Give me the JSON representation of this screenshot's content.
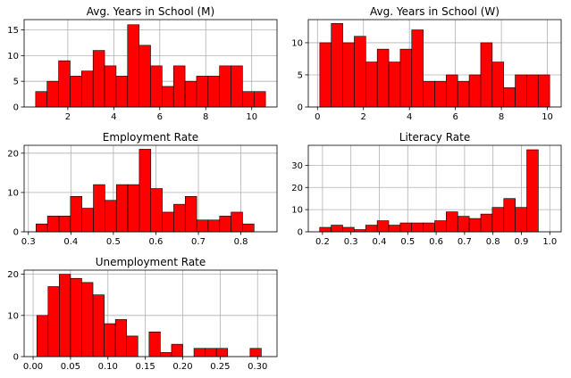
{
  "chart_data": [
    {
      "type": "bar",
      "subtype": "histogram",
      "title": "Avg. Years in School (M)",
      "grid": true,
      "color": "#ff0000",
      "edge_color": "#000000",
      "xlim": [
        0.1,
        11.1
      ],
      "ylim": [
        0,
        17
      ],
      "xticks": [
        2,
        4,
        6,
        8,
        10
      ],
      "xtick_labels": [
        "2",
        "4",
        "6",
        "8",
        "10"
      ],
      "yticks": [
        0,
        5,
        10,
        15
      ],
      "ytick_labels": [
        "0",
        "5",
        "10",
        "15"
      ],
      "bin_edges": [
        0.6,
        1.1,
        1.6,
        2.1,
        2.6,
        3.1,
        3.6,
        4.1,
        4.6,
        5.1,
        5.6,
        6.1,
        6.6,
        7.1,
        7.6,
        8.1,
        8.6,
        9.1,
        9.6,
        10.1,
        10.6
      ],
      "counts": [
        3,
        5,
        9,
        6,
        7,
        11,
        8,
        6,
        16,
        12,
        8,
        4,
        8,
        5,
        6,
        6,
        8,
        8,
        3,
        3
      ]
    },
    {
      "type": "bar",
      "subtype": "histogram",
      "title": "Avg. Years in School (W)",
      "grid": true,
      "color": "#ff0000",
      "edge_color": "#000000",
      "xlim": [
        -0.4,
        10.6
      ],
      "ylim": [
        0,
        13.6
      ],
      "xticks": [
        0,
        2,
        4,
        6,
        8,
        10
      ],
      "xtick_labels": [
        "0",
        "2",
        "4",
        "6",
        "8",
        "10"
      ],
      "yticks": [
        0,
        5,
        10
      ],
      "ytick_labels": [
        "0",
        "5",
        "10"
      ],
      "bin_edges": [
        0.1,
        0.6,
        1.1,
        1.6,
        2.1,
        2.6,
        3.1,
        3.6,
        4.1,
        4.6,
        5.1,
        5.6,
        6.1,
        6.6,
        7.1,
        7.6,
        8.1,
        8.6,
        9.1,
        9.6,
        10.1
      ],
      "counts": [
        10,
        13,
        10,
        11,
        7,
        9,
        7,
        9,
        12,
        4,
        4,
        5,
        4,
        5,
        10,
        7,
        3,
        5,
        5,
        5
      ]
    },
    {
      "type": "bar",
      "subtype": "histogram",
      "title": "Employment Rate",
      "grid": true,
      "color": "#ff0000",
      "edge_color": "#000000",
      "xlim": [
        0.29,
        0.885
      ],
      "ylim": [
        0,
        22
      ],
      "xticks": [
        0.3,
        0.4,
        0.5,
        0.6,
        0.7,
        0.8
      ],
      "xtick_labels": [
        "0.3",
        "0.4",
        "0.5",
        "0.6",
        "0.7",
        "0.8"
      ],
      "yticks": [
        0,
        10,
        20
      ],
      "ytick_labels": [
        "0",
        "10",
        "20"
      ],
      "bin_edges": [
        0.318,
        0.345,
        0.372,
        0.399,
        0.426,
        0.453,
        0.48,
        0.507,
        0.534,
        0.561,
        0.588,
        0.615,
        0.642,
        0.669,
        0.696,
        0.723,
        0.75,
        0.777,
        0.804,
        0.831,
        0.858
      ],
      "counts": [
        2,
        4,
        4,
        9,
        6,
        12,
        8,
        12,
        12,
        21,
        11,
        5,
        7,
        9,
        3,
        3,
        4,
        5,
        2,
        0
      ]
    },
    {
      "type": "bar",
      "subtype": "histogram",
      "title": "Literacy Rate",
      "grid": true,
      "color": "#ff0000",
      "edge_color": "#000000",
      "xlim": [
        0.15,
        1.04
      ],
      "ylim": [
        0,
        39
      ],
      "xticks": [
        0.2,
        0.3,
        0.4,
        0.5,
        0.6,
        0.7,
        0.8,
        0.9,
        1.0
      ],
      "xtick_labels": [
        "0.2",
        "0.3",
        "0.4",
        "0.5",
        "0.6",
        "0.7",
        "0.8",
        "0.9",
        "1.0"
      ],
      "yticks": [
        0,
        10,
        20,
        30
      ],
      "ytick_labels": [
        "0",
        "10",
        "20",
        "30"
      ],
      "bin_edges": [
        0.19,
        0.2305,
        0.271,
        0.3115,
        0.352,
        0.3925,
        0.433,
        0.4735,
        0.514,
        0.5545,
        0.595,
        0.6355,
        0.676,
        0.7165,
        0.757,
        0.7975,
        0.838,
        0.8785,
        0.919,
        0.9595,
        1.0
      ],
      "counts": [
        2,
        3,
        2,
        1,
        3,
        5,
        3,
        4,
        4,
        4,
        5,
        9,
        7,
        6,
        8,
        11,
        15,
        11,
        37,
        0
      ]
    },
    {
      "type": "bar",
      "subtype": "histogram",
      "title": "Unemployment Rate",
      "grid": true,
      "color": "#ff0000",
      "edge_color": "#000000",
      "xlim": [
        -0.012,
        0.326
      ],
      "ylim": [
        0,
        21
      ],
      "xticks": [
        0.0,
        0.05,
        0.1,
        0.15,
        0.2,
        0.25,
        0.3
      ],
      "xtick_labels": [
        "0.00",
        "0.05",
        "0.10",
        "0.15",
        "0.20",
        "0.25",
        "0.30"
      ],
      "yticks": [
        0,
        10,
        20
      ],
      "ytick_labels": [
        "0",
        "10",
        "20"
      ],
      "bin_edges": [
        0.005,
        0.02,
        0.035,
        0.05,
        0.065,
        0.08,
        0.095,
        0.11,
        0.125,
        0.14,
        0.155,
        0.17,
        0.185,
        0.2,
        0.215,
        0.23,
        0.245,
        0.26,
        0.275,
        0.29,
        0.305,
        0.32
      ],
      "counts": [
        10,
        17,
        20,
        19,
        18,
        15,
        8,
        9,
        5,
        0,
        6,
        1,
        3,
        0,
        2,
        2,
        2,
        0,
        0,
        2,
        0
      ]
    }
  ]
}
